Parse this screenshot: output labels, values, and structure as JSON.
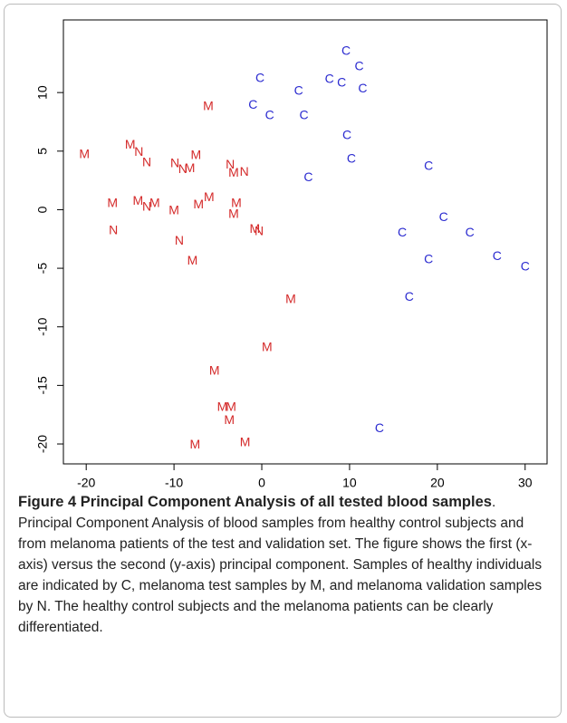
{
  "chart_data": {
    "type": "scatter",
    "marker": "letter",
    "xlim": [
      -22.6,
      32.5
    ],
    "ylim": [
      -21.7,
      16.2
    ],
    "xticks": [
      -20,
      -10,
      0,
      10,
      20,
      30
    ],
    "yticks": [
      -20,
      -15,
      -10,
      -5,
      0,
      5,
      10
    ],
    "series": [
      {
        "name": "C",
        "color": "#2b2bd0",
        "x": [
          9.6,
          -0.2,
          7.7,
          9.1,
          11.1,
          11.5,
          4.2,
          -1.0,
          0.9,
          4.8,
          9.7,
          10.2,
          5.3,
          19.0,
          20.7,
          16.0,
          23.7,
          19.0,
          26.8,
          30.0,
          16.8,
          13.4
        ],
        "values": [
          13.5,
          11.2,
          11.1,
          10.8,
          12.2,
          10.3,
          10.1,
          8.9,
          8.0,
          8.0,
          6.3,
          4.3,
          2.7,
          3.7,
          -0.7,
          -2.0,
          -2.0,
          -4.3,
          -4.0,
          -4.9,
          -7.5,
          -18.7
        ]
      },
      {
        "name": "M",
        "color": "#d42a2a",
        "x": [
          -6.1,
          -20.2,
          -7.5,
          -15.0,
          -17.0,
          -14.1,
          -12.2,
          -10.0,
          -7.2,
          -6.0,
          -2.9,
          -3.2,
          -8.2,
          -7.9,
          3.3,
          0.6,
          -5.4,
          -4.5,
          -3.5,
          -3.7,
          -7.6,
          -1.9,
          -0.8,
          -3.2
        ],
        "values": [
          8.8,
          4.7,
          4.6,
          5.5,
          0.5,
          0.7,
          0.5,
          -0.1,
          0.4,
          1.0,
          0.5,
          -0.4,
          3.5,
          -4.4,
          -7.7,
          -11.8,
          -13.8,
          -16.9,
          -16.9,
          -18.0,
          -20.1,
          -19.9,
          -1.7,
          3.1
        ]
      },
      {
        "name": "N",
        "color": "#d42a2a",
        "x": [
          -14.0,
          -13.1,
          -13.1,
          -16.9,
          -9.9,
          -9.0,
          -3.6,
          -2.0,
          -9.4,
          -0.3
        ],
        "values": [
          4.9,
          4.0,
          0.2,
          -1.8,
          3.9,
          3.4,
          3.8,
          3.2,
          -2.7,
          -1.9
        ]
      }
    ]
  },
  "caption": {
    "label": "Figure 4",
    "title": "Principal Component Analysis of all tested blood samples",
    "text": ". Principal Component Analysis of blood samples from healthy control subjects and from melanoma patients of the test and validation set. The figure shows the first (x-axis) versus the second (y-axis) principal component. Samples of healthy individuals are indicated by C, melanoma test samples by M, and melanoma validation samples by N. The healthy control subjects and the melanoma patients can be clearly differentiated."
  }
}
